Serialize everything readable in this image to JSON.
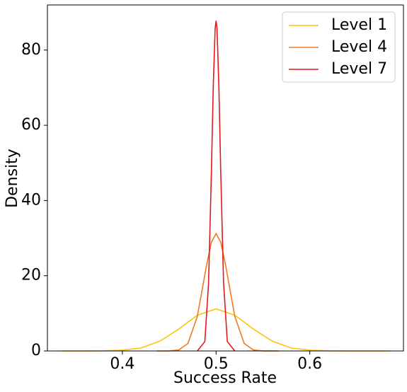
{
  "chart_data": {
    "type": "line",
    "xlabel": "Success Rate",
    "ylabel": "Density",
    "xlim": [
      0.32,
      0.7
    ],
    "ylim": [
      0,
      92
    ],
    "xticks": [
      0.4,
      0.5,
      0.6
    ],
    "yticks": [
      0,
      20,
      40,
      60,
      80
    ],
    "legend": "upper right",
    "series": [
      {
        "name": "Level 1",
        "color": "#ffc20e",
        "x": [
          0.335,
          0.36,
          0.38,
          0.4,
          0.42,
          0.44,
          0.46,
          0.48,
          0.5,
          0.52,
          0.54,
          0.56,
          0.58,
          0.6,
          0.62,
          0.64,
          0.66,
          0.685
        ],
        "values": [
          0,
          0,
          0.03,
          0.2,
          0.8,
          2.6,
          5.8,
          9.5,
          11.2,
          9.5,
          5.8,
          2.6,
          0.8,
          0.2,
          0.03,
          0,
          0,
          0
        ]
      },
      {
        "name": "Level 4",
        "color": "#f07820",
        "x": [
          0.437,
          0.45,
          0.46,
          0.47,
          0.48,
          0.49,
          0.495,
          0.5,
          0.505,
          0.51,
          0.52,
          0.53,
          0.54,
          0.55,
          0.567
        ],
        "values": [
          0,
          0.02,
          0.24,
          2.0,
          9.2,
          23.0,
          28.9,
          31.2,
          28.9,
          23.0,
          9.2,
          2.0,
          0.24,
          0.02,
          0
        ]
      },
      {
        "name": "Level 7",
        "color": "#e31a1c",
        "x": [
          0.48,
          0.488,
          0.492,
          0.495,
          0.497,
          0.499,
          0.5,
          0.501,
          0.503,
          0.505,
          0.508,
          0.512,
          0.52
        ],
        "values": [
          0,
          2.5,
          18.1,
          47.4,
          70.3,
          85.7,
          87.8,
          85.7,
          70.3,
          47.4,
          18.1,
          2.5,
          0
        ]
      }
    ]
  }
}
